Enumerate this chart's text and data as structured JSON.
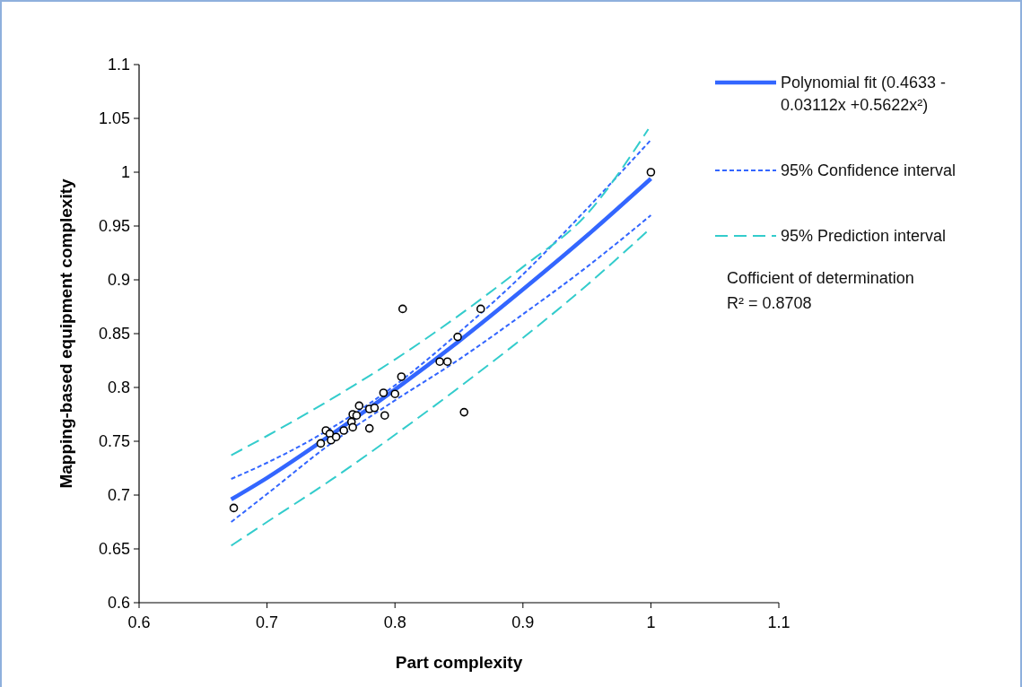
{
  "chart_data": {
    "type": "scatter",
    "xlabel": "Part complexity",
    "ylabel": "Mapping-based equipment complexity",
    "xlim": [
      0.6,
      1.1
    ],
    "ylim": [
      0.6,
      1.1
    ],
    "xticks": [
      {
        "value": 0.6,
        "label": "0.6"
      },
      {
        "value": 0.7,
        "label": "0.7"
      },
      {
        "value": 0.8,
        "label": "0.8"
      },
      {
        "value": 0.9,
        "label": "0.9"
      },
      {
        "value": 1,
        "label": "1"
      },
      {
        "value": 1.1,
        "label": "1.1"
      }
    ],
    "yticks": [
      {
        "value": 0.6,
        "label": "0.6"
      },
      {
        "value": 0.65,
        "label": "0.65"
      },
      {
        "value": 0.7,
        "label": "0.7"
      },
      {
        "value": 0.75,
        "label": "0.75"
      },
      {
        "value": 0.8,
        "label": "0.8"
      },
      {
        "value": 0.85,
        "label": "0.85"
      },
      {
        "value": 0.9,
        "label": "0.9"
      },
      {
        "value": 0.95,
        "label": "0.95"
      },
      {
        "value": 1,
        "label": "1"
      },
      {
        "value": 1.05,
        "label": "1.05"
      },
      {
        "value": 1.1,
        "label": "1.1"
      }
    ],
    "legend": "right",
    "series": [
      {
        "color": "#000000",
        "marker": "circle",
        "x": [
          0.674,
          0.742,
          0.746,
          0.749,
          0.75,
          0.754,
          0.76,
          0.766,
          0.767,
          0.767,
          0.77,
          0.772,
          0.78,
          0.78,
          0.784,
          0.791,
          0.792,
          0.8,
          0.805,
          0.806,
          0.835,
          0.841,
          0.849,
          0.854,
          0.867,
          1.0
        ],
        "values": [
          0.688,
          0.748,
          0.76,
          0.757,
          0.751,
          0.754,
          0.76,
          0.768,
          0.763,
          0.775,
          0.774,
          0.783,
          0.762,
          0.78,
          0.781,
          0.795,
          0.774,
          0.794,
          0.81,
          0.873,
          0.824,
          0.824,
          0.847,
          0.777,
          0.873,
          1.0
        ]
      },
      {
        "type": "line",
        "name": "Polynomial fit (0.4633  - 0.03112x  +0.5622x²)",
        "color": "#3366ff",
        "line_style": "solid",
        "x": [
          0.672,
          0.7,
          0.75,
          0.8,
          0.85,
          0.9,
          0.95,
          1.0
        ],
        "values": [
          0.696,
          0.716,
          0.756,
          0.798,
          0.843,
          0.891,
          0.941,
          0.994
        ]
      },
      {
        "type": "line",
        "name": "95% Confidence interval",
        "color": "#3366ff",
        "line_style": "dotted",
        "x": [
          0.672,
          0.7,
          0.75,
          0.8,
          0.85,
          0.9,
          0.95,
          1.0
        ],
        "values": [
          0.715,
          0.73,
          0.762,
          0.802,
          0.851,
          0.905,
          0.966,
          1.03
        ]
      },
      {
        "type": "line",
        "color": "#3366ff",
        "line_style": "dotted",
        "x": [
          0.672,
          0.7,
          0.75,
          0.8,
          0.85,
          0.9,
          0.95,
          1.0
        ],
        "values": [
          0.675,
          0.701,
          0.748,
          0.788,
          0.826,
          0.868,
          0.912,
          0.96
        ]
      },
      {
        "type": "line",
        "name": "95% Prediction interval",
        "color": "#33cccc",
        "line_style": "dashed",
        "x": [
          0.672,
          0.7,
          0.75,
          0.8,
          0.85,
          0.9,
          0.95,
          0.998
        ],
        "values": [
          0.737,
          0.755,
          0.789,
          0.826,
          0.867,
          0.912,
          0.961,
          1.04
        ]
      },
      {
        "type": "line",
        "color": "#33cccc",
        "line_style": "dashed",
        "x": [
          0.672,
          0.7,
          0.75,
          0.8,
          0.85,
          0.9,
          0.95,
          0.998
        ],
        "values": [
          0.653,
          0.675,
          0.714,
          0.756,
          0.8,
          0.846,
          0.895,
          0.946
        ]
      }
    ],
    "annotations": [
      "Cofficient of determination",
      "R² = 0.8708"
    ]
  }
}
